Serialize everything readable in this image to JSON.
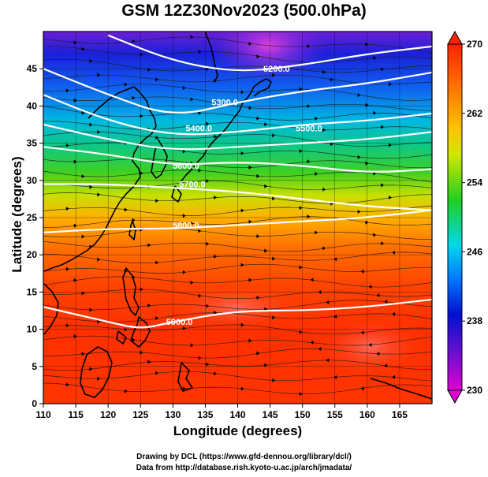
{
  "title": "GSM 12Z30Nov2023 (500.0hPa)",
  "chart_data": {
    "type": "heatmap",
    "title": "GSM 12Z30Nov2023 (500.0hPa)",
    "xlabel": "Longitude (degrees)",
    "ylabel": "Latitude  (degrees)",
    "xlim": [
      110,
      170
    ],
    "ylim": [
      0,
      50
    ],
    "x_ticks": [
      "110",
      "115",
      "120",
      "125",
      "130",
      "135",
      "140",
      "145",
      "150",
      "155",
      "160",
      "165"
    ],
    "y_ticks": [
      "0",
      "5",
      "10",
      "15",
      "20",
      "25",
      "30",
      "35",
      "40",
      "45"
    ],
    "colorbar": {
      "range": [
        230,
        270
      ],
      "ticks": [
        "230",
        "238",
        "246",
        "254",
        "262",
        "270"
      ],
      "colors": [
        "#cc00cc",
        "#0000cc",
        "#0070ff",
        "#00d8d8",
        "#00cc33",
        "#ffff00",
        "#ff9900",
        "#ff2200"
      ]
    },
    "contours": [
      {
        "label": "5200.0",
        "points": [
          [
            120,
            49.5
          ],
          [
            130,
            46
          ],
          [
            140,
            44.5
          ],
          [
            150,
            45.5
          ],
          [
            160,
            47
          ],
          [
            170,
            48
          ]
        ],
        "label_at": [
          146,
          45
        ]
      },
      {
        "label": "5300.0",
        "points": [
          [
            110,
            45
          ],
          [
            120,
            41.5
          ],
          [
            130,
            38.5
          ],
          [
            140,
            40.5
          ],
          [
            150,
            42
          ],
          [
            160,
            43
          ],
          [
            170,
            44.5
          ]
        ],
        "label_at": [
          138,
          40.5
        ]
      },
      {
        "label": "5400.0",
        "points": [
          [
            110,
            41.5
          ],
          [
            120,
            38
          ],
          [
            130,
            36
          ],
          [
            140,
            36.5
          ],
          [
            150,
            37.5
          ],
          [
            160,
            38
          ],
          [
            170,
            39
          ]
        ],
        "label_at": [
          134,
          37
        ]
      },
      {
        "label": "5500.0",
        "points": [
          [
            110,
            37.5
          ],
          [
            120,
            35.5
          ],
          [
            130,
            34
          ],
          [
            140,
            34.5
          ],
          [
            150,
            35
          ],
          [
            160,
            35.5
          ],
          [
            170,
            36.5
          ]
        ],
        "label_at": [
          151,
          37
        ]
      },
      {
        "label": "5600.0",
        "points": [
          [
            110,
            34.5
          ],
          [
            120,
            33.5
          ],
          [
            130,
            32
          ],
          [
            140,
            32.5
          ],
          [
            150,
            32
          ],
          [
            160,
            31
          ],
          [
            170,
            31.5
          ]
        ],
        "label_at": [
          132,
          32
        ]
      },
      {
        "label": "5700.0",
        "points": [
          [
            110,
            29.5
          ],
          [
            120,
            29.5
          ],
          [
            130,
            29
          ],
          [
            140,
            28.5
          ],
          [
            150,
            27.5
          ],
          [
            160,
            26.5
          ],
          [
            170,
            26
          ]
        ],
        "label_at": [
          133,
          29.5
        ]
      },
      {
        "label": "5800.0",
        "points": [
          [
            110,
            23
          ],
          [
            120,
            23.5
          ],
          [
            130,
            23.5
          ],
          [
            140,
            24
          ],
          [
            150,
            24.5
          ],
          [
            160,
            25
          ],
          [
            170,
            26
          ]
        ],
        "label_at": [
          132,
          24
        ]
      },
      {
        "label": "5900.0",
        "points": [
          [
            110,
            13
          ],
          [
            115,
            12
          ],
          [
            120,
            11
          ],
          [
            125,
            10
          ],
          [
            130,
            11
          ],
          [
            140,
            12.5
          ],
          [
            150,
            12.5
          ],
          [
            160,
            13
          ],
          [
            170,
            14
          ]
        ],
        "label_at": [
          131,
          11
        ]
      }
    ],
    "legend": "right"
  },
  "credits": {
    "line1": "Drawing by DCL (https://www.gfd-dennou.org/library/dcl/)",
    "line2": "Data from http://database.rish.kyoto-u.ac.jp/arch/jmadata/"
  }
}
